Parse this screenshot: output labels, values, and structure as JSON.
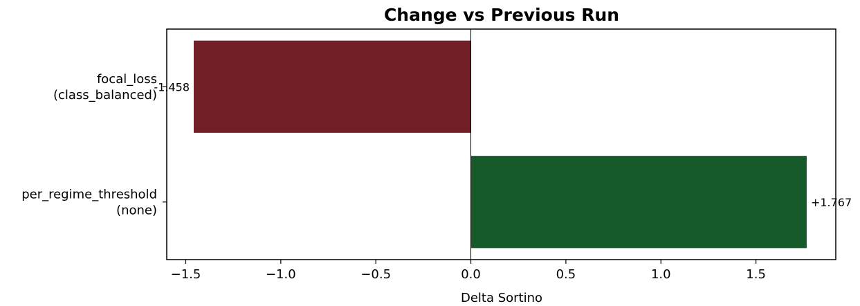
{
  "chart_data": {
    "type": "bar",
    "orientation": "horizontal",
    "title": "Change vs Previous Run",
    "xlabel": "Delta Sortino",
    "ylabel": "",
    "xlim": [
      -1.6,
      1.92
    ],
    "xticks": [
      -1.5,
      -1.0,
      -0.5,
      0.0,
      0.5,
      1.0,
      1.5
    ],
    "xtick_labels": [
      "−1.5",
      "−1.0",
      "−0.5",
      "0.0",
      "0.5",
      "1.0",
      "1.5"
    ],
    "grid": false,
    "categories": [
      [
        "focal_loss",
        "(class_balanced)"
      ],
      [
        "per_regime_threshold",
        "(none)"
      ]
    ],
    "values": [
      -1.458,
      1.767
    ],
    "value_labels": [
      "-1.458",
      "+1.767"
    ],
    "colors": [
      "#731f27",
      "#175a29"
    ],
    "zero_line_color": "#000000"
  }
}
